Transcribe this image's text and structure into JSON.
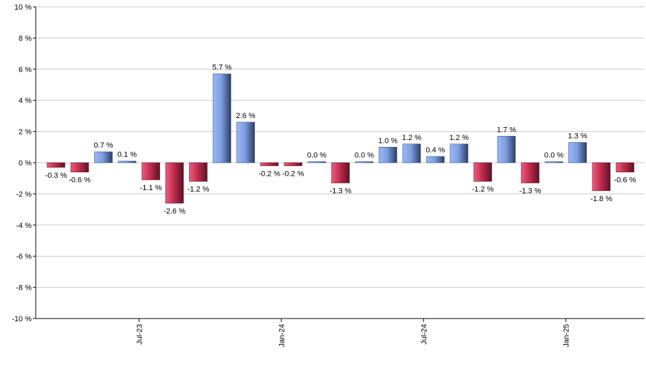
{
  "chart_data": {
    "type": "bar",
    "title": "",
    "xlabel": "",
    "ylabel": "",
    "ylim": [
      -10,
      10
    ],
    "y_ticks": [
      10,
      8,
      6,
      4,
      2,
      0,
      -2,
      -4,
      -6,
      -8,
      -10
    ],
    "y_tick_suffix": " %",
    "grid": true,
    "legend": "none",
    "colors": {
      "positive": "#7e9fe4",
      "positive_dark": "#2c3e66",
      "negative": "#d43a5c",
      "negative_dark": "#5e1224",
      "grid": "#c8c8c8",
      "axis": "#000000"
    },
    "x_labels": [
      {
        "label": "Jul-23",
        "index": 3.5
      },
      {
        "label": "Jan-24",
        "index": 9.5
      },
      {
        "label": "Jul-24",
        "index": 15.5
      },
      {
        "label": "Jan-25",
        "index": 21.5
      }
    ],
    "values": [
      -0.3,
      -0.6,
      0.7,
      0.1,
      -1.1,
      -2.6,
      -1.2,
      5.7,
      2.6,
      -0.2,
      -0.2,
      0.0,
      -1.3,
      0.0,
      1.0,
      1.2,
      0.4,
      1.2,
      -1.2,
      1.7,
      -1.3,
      0.0,
      1.3,
      -1.8,
      -0.6
    ],
    "labels": [
      "-0.3 %",
      "-0.6 %",
      "0.7 %",
      "0.1 %",
      "-1.1 %",
      "-2.6 %",
      "-1.2 %",
      "5.7 %",
      "2.6 %",
      "-0.2 %",
      "-0.2 %",
      "0.0 %",
      "-1.3 %",
      "0.0 %",
      "1.0 %",
      "1.2 %",
      "0.4 %",
      "1.2 %",
      "-1.2 %",
      "1.7 %",
      "-1.3 %",
      "0.0 %",
      "1.3 %",
      "-1.8 %",
      "-0.6 %"
    ]
  }
}
